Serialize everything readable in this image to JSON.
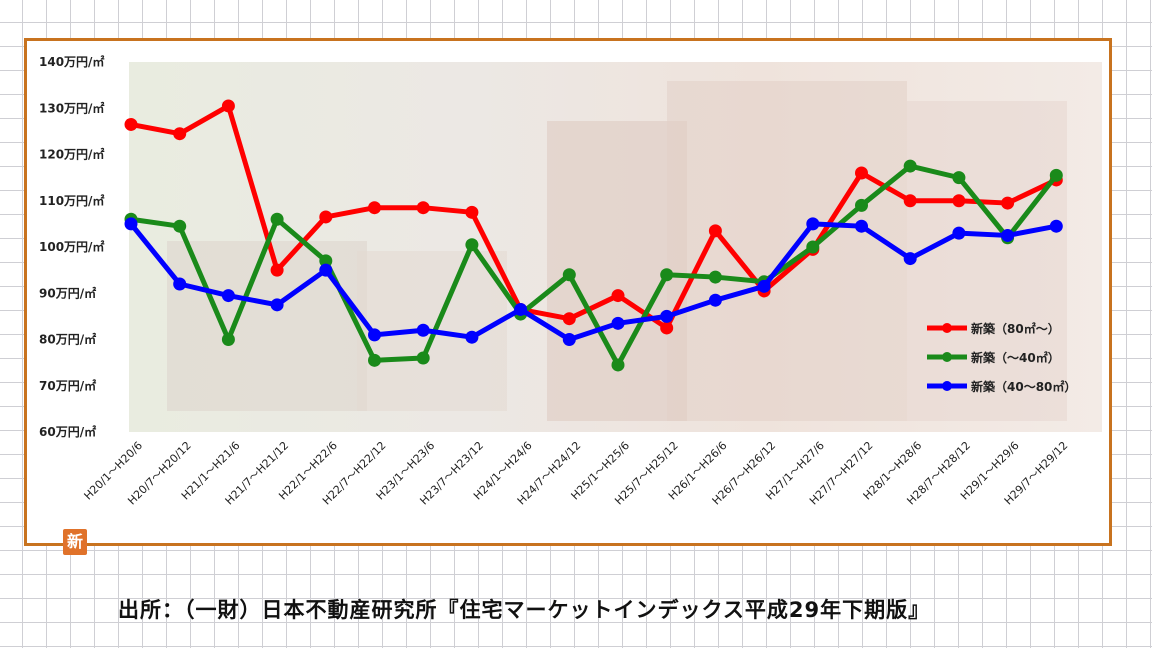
{
  "chart_data": {
    "type": "line",
    "title": "",
    "xlabel": "",
    "ylabel": "",
    "ylim": [
      60,
      140
    ],
    "yticks": [
      140,
      130,
      120,
      110,
      100,
      90,
      80,
      70,
      60
    ],
    "ytick_labels": [
      "140万円/㎡",
      "130万円/㎡",
      "120万円/㎡",
      "110万円/㎡",
      "100万円/㎡",
      "90万円/㎡",
      "80万円/㎡",
      "70万円/㎡",
      "60万円/㎡"
    ],
    "categories": [
      "H20/1～H20/6",
      "H20/7～H20/12",
      "H21/1～H21/6",
      "H21/7～H21/12",
      "H22/1～H22/6",
      "H22/7～H22/12",
      "H23/1～H23/6",
      "H23/7～H23/12",
      "H24/1～H24/6",
      "H24/7～H24/12",
      "H25/1～H25/6",
      "H25/7～H25/12",
      "H26/1～H26/6",
      "H26/7～H26/12",
      "H27/1～H27/6",
      "H27/7～H27/12",
      "H28/1～H28/6",
      "H28/7～H28/12",
      "H29/1～H29/6",
      "H29/7～H29/12"
    ],
    "grid": false,
    "legend_position": "right",
    "series": [
      {
        "name": "新築（80㎡～）",
        "color": "#ff0000",
        "values": [
          126.5,
          124.5,
          130.5,
          95,
          106.5,
          108.5,
          108.5,
          107.5,
          86.5,
          84.5,
          89.5,
          82.5,
          103.5,
          90.5,
          99.5,
          116,
          110,
          110,
          109.5,
          114.5
        ]
      },
      {
        "name": "新築（～40㎡）",
        "color": "#1a8a1a",
        "values": [
          106,
          104.5,
          80,
          106,
          97,
          75.5,
          76,
          100.5,
          85.5,
          94,
          74.5,
          94,
          93.5,
          92.5,
          100,
          109,
          117.5,
          115,
          102,
          115.5
        ]
      },
      {
        "name": "新築（40～80㎡）",
        "color": "#0000ff",
        "values": [
          105,
          92,
          89.5,
          87.5,
          95,
          81,
          82,
          80.5,
          86.5,
          80,
          83.5,
          85,
          88.5,
          91.5,
          105,
          104.5,
          97.5,
          103,
          102.5,
          104.5
        ]
      }
    ]
  },
  "logo_glyph": "新",
  "source_note": "出所：（一財）日本不動産研究所『住宅マーケットインデックス平成29年下期版』"
}
